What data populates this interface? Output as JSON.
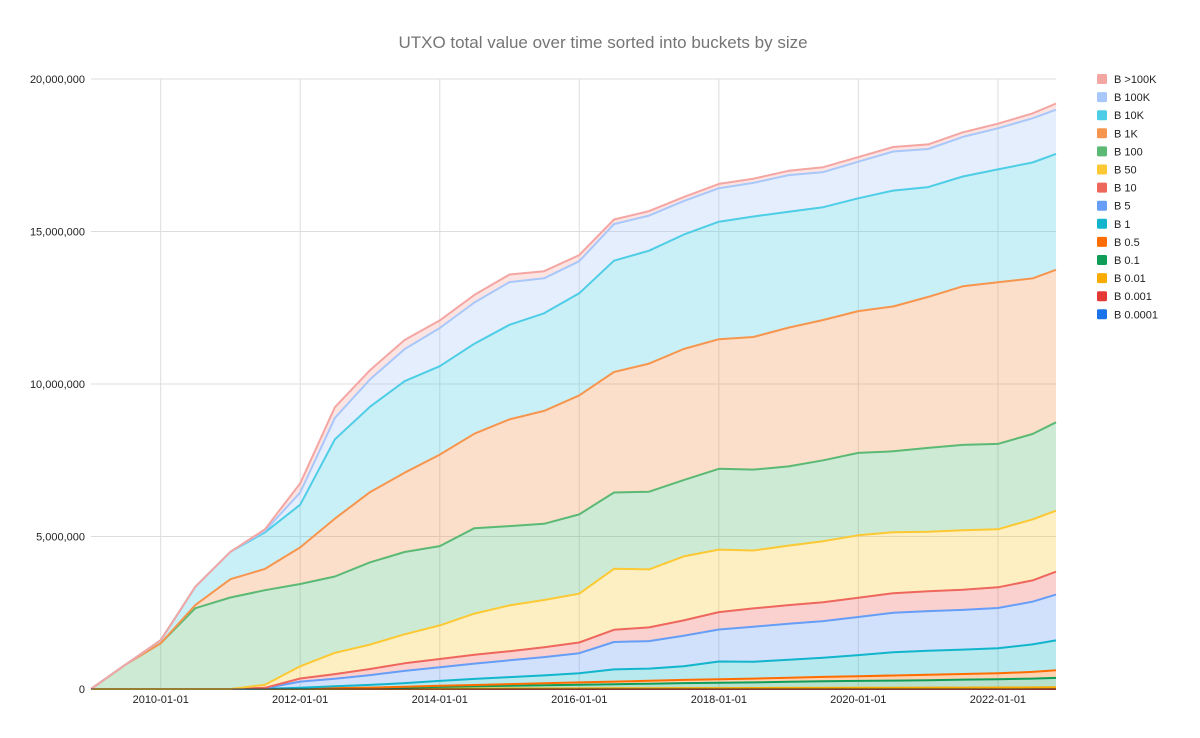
{
  "chart_data": {
    "type": "area",
    "stacked": true,
    "title": "UTXO total value over time sorted into buckets by size",
    "xlabel": "",
    "ylabel": "",
    "x": [
      "2009-01-01",
      "2009-07-01",
      "2010-01-01",
      "2010-07-01",
      "2011-01-01",
      "2011-07-01",
      "2012-01-01",
      "2012-07-01",
      "2013-01-01",
      "2013-07-01",
      "2014-01-01",
      "2014-07-01",
      "2015-01-01",
      "2015-07-01",
      "2016-01-01",
      "2016-07-01",
      "2017-01-01",
      "2017-07-01",
      "2018-01-01",
      "2018-07-01",
      "2019-01-01",
      "2019-07-01",
      "2020-01-01",
      "2020-07-01",
      "2021-01-01",
      "2021-07-01",
      "2022-01-01",
      "2022-07-01",
      "2022-11-01"
    ],
    "x_range": [
      "2009-01-01",
      "2022-11-01"
    ],
    "x_ticks": [
      "2010-01-01",
      "2012-01-01",
      "2014-01-01",
      "2016-01-01",
      "2018-01-01",
      "2020-01-01",
      "2022-01-01"
    ],
    "ylim": [
      0,
      20000000
    ],
    "y_ticks": [
      0,
      5000000,
      10000000,
      15000000,
      20000000
    ],
    "y_tick_labels": [
      "0",
      "5,000,000",
      "10,000,000",
      "15,000,000",
      "20,000,000"
    ],
    "grid": true,
    "legend_position": "right",
    "series": [
      {
        "name": "B 0.0001",
        "color": "#1a73e8",
        "values": [
          0,
          0,
          0,
          0,
          0,
          0,
          0,
          0,
          0,
          0,
          0,
          0,
          0,
          0,
          0,
          0,
          0,
          0,
          0,
          0,
          0,
          0,
          0,
          0,
          0,
          0,
          0,
          0,
          0
        ]
      },
      {
        "name": "B 0.001",
        "color": "#e53935",
        "values": [
          0,
          0,
          0,
          0,
          0,
          0,
          0,
          0,
          0,
          0,
          0,
          0,
          0,
          0,
          0,
          0,
          0,
          0,
          0,
          0,
          0,
          0,
          0,
          0,
          0,
          0,
          0,
          0,
          0
        ]
      },
      {
        "name": "B 0.01",
        "color": "#f9ab00",
        "values": [
          0,
          0,
          0,
          0,
          0,
          0,
          1000,
          3000,
          5000,
          8000,
          10000,
          12000,
          15000,
          17000,
          20000,
          22000,
          25000,
          28000,
          30000,
          32000,
          35000,
          37000,
          40000,
          42000,
          45000,
          47000,
          50000,
          52000,
          55000
        ]
      },
      {
        "name": "B 0.1",
        "color": "#0f9d58",
        "values": [
          0,
          0,
          0,
          0,
          0,
          2000,
          8000,
          15000,
          25000,
          40000,
          60000,
          75000,
          90000,
          105000,
          120000,
          135000,
          150000,
          165000,
          175000,
          185000,
          200000,
          215000,
          225000,
          235000,
          245000,
          260000,
          270000,
          290000,
          310000
        ]
      },
      {
        "name": "B 0.5",
        "color": "#ff6d00",
        "values": [
          0,
          0,
          0,
          0,
          0,
          1000,
          5000,
          10000,
          15000,
          25000,
          35000,
          45000,
          55000,
          65000,
          75000,
          85000,
          95000,
          105000,
          115000,
          125000,
          135000,
          145000,
          155000,
          165000,
          175000,
          185000,
          195000,
          220000,
          250000
        ]
      },
      {
        "name": "B 1",
        "color": "#12b5cb",
        "values": [
          0,
          0,
          0,
          0,
          0,
          5000,
          30000,
          60000,
          90000,
          120000,
          160000,
          200000,
          230000,
          260000,
          300000,
          400000,
          400000,
          450000,
          580000,
          550000,
          590000,
          630000,
          690000,
          760000,
          790000,
          800000,
          820000,
          900000,
          980000
        ]
      },
      {
        "name": "B 5",
        "color": "#669df6",
        "values": [
          0,
          0,
          0,
          0,
          0,
          20000,
          200000,
          250000,
          320000,
          400000,
          450000,
          500000,
          550000,
          600000,
          660000,
          900000,
          900000,
          1000000,
          1050000,
          1150000,
          1180000,
          1200000,
          1250000,
          1300000,
          1300000,
          1300000,
          1320000,
          1400000,
          1500000
        ]
      },
      {
        "name": "B 10",
        "color": "#ee675c",
        "values": [
          0,
          0,
          0,
          0,
          0,
          10000,
          100000,
          150000,
          200000,
          250000,
          270000,
          290000,
          300000,
          320000,
          350000,
          400000,
          450000,
          500000,
          570000,
          600000,
          610000,
          620000,
          630000,
          640000,
          650000,
          660000,
          680000,
          700000,
          750000
        ]
      },
      {
        "name": "B 50",
        "color": "#fcc934",
        "values": [
          0,
          0,
          0,
          0,
          0,
          100000,
          400000,
          700000,
          800000,
          950000,
          1100000,
          1350000,
          1500000,
          1550000,
          1600000,
          2000000,
          1900000,
          2100000,
          2050000,
          1900000,
          1950000,
          2000000,
          2050000,
          2000000,
          1950000,
          1950000,
          1900000,
          2000000,
          2000000
        ]
      },
      {
        "name": "B 100",
        "color": "#5bb974",
        "values": [
          0,
          800000,
          1500000,
          2650000,
          3000000,
          3100000,
          2700000,
          2500000,
          2700000,
          2700000,
          2600000,
          2800000,
          2600000,
          2500000,
          2600000,
          2500000,
          2550000,
          2500000,
          2650000,
          2650000,
          2600000,
          2650000,
          2700000,
          2650000,
          2750000,
          2800000,
          2800000,
          2800000,
          2900000
        ]
      },
      {
        "name": "B 1K",
        "color": "#f6954e",
        "values": [
          0,
          0,
          0,
          100000,
          600000,
          700000,
          1200000,
          1900000,
          2300000,
          2600000,
          3000000,
          3100000,
          3500000,
          3700000,
          3900000,
          3950000,
          4200000,
          4300000,
          4250000,
          4350000,
          4550000,
          4600000,
          4650000,
          4750000,
          4950000,
          5200000,
          5300000,
          5100000,
          5000000
        ]
      },
      {
        "name": "B 10K",
        "color": "#4ecde6",
        "values": [
          0,
          0,
          100000,
          600000,
          900000,
          1200000,
          1400000,
          2600000,
          2800000,
          3000000,
          2900000,
          2950000,
          3100000,
          3200000,
          3350000,
          3650000,
          3700000,
          3750000,
          3850000,
          3950000,
          3800000,
          3700000,
          3700000,
          3800000,
          3600000,
          3600000,
          3700000,
          3800000,
          3800000
        ]
      },
      {
        "name": "B 100K",
        "color": "#a8c7fa",
        "values": [
          0,
          0,
          0,
          0,
          0,
          50000,
          400000,
          700000,
          900000,
          1050000,
          1250000,
          1350000,
          1400000,
          1150000,
          1050000,
          1200000,
          1150000,
          1100000,
          1100000,
          1100000,
          1200000,
          1150000,
          1200000,
          1280000,
          1250000,
          1300000,
          1350000,
          1450000,
          1450000
        ]
      },
      {
        "name": "B >100K",
        "color": "#f4a6a3",
        "values": [
          0,
          0,
          0,
          0,
          0,
          50000,
          300000,
          350000,
          300000,
          300000,
          250000,
          250000,
          250000,
          230000,
          200000,
          150000,
          150000,
          130000,
          140000,
          140000,
          140000,
          160000,
          150000,
          150000,
          150000,
          150000,
          150000,
          160000,
          200000
        ]
      }
    ],
    "legend_order": [
      "B >100K",
      "B 100K",
      "B 10K",
      "B 1K",
      "B 100",
      "B 50",
      "B 10",
      "B 5",
      "B 1",
      "B 0.5",
      "B 0.1",
      "B 0.01",
      "B 0.001",
      "B 0.0001"
    ]
  }
}
